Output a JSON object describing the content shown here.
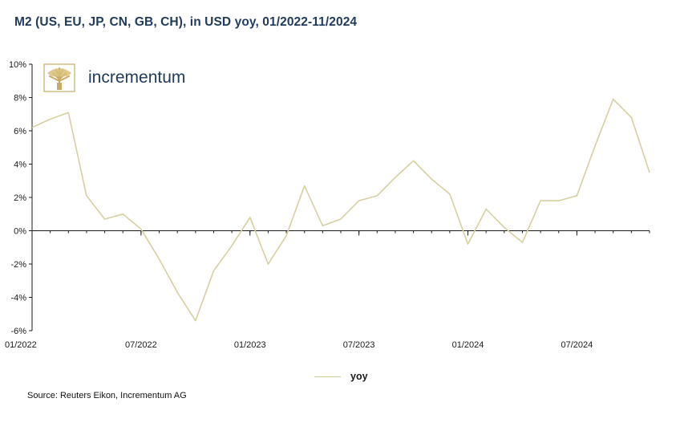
{
  "title": "M2 (US, EU, JP, CN, GB, CH), in USD yoy, 01/2022-11/2024",
  "logo": {
    "text": "incrementum",
    "icon": "tree-icon",
    "color": "#c8ab64"
  },
  "source": "Source: Reuters Eikon, Incrementum AG",
  "chart_data": {
    "type": "line",
    "title": "M2 (US, EU, JP, CN, GB, CH), in USD yoy, 01/2022-11/2024",
    "xlabel": "",
    "ylabel": "",
    "ylim": [
      -6,
      10
    ],
    "y_ticks": [
      "10%",
      "8%",
      "6%",
      "4%",
      "2%",
      "0%",
      "-2%",
      "-4%",
      "-6%"
    ],
    "y_tick_values": [
      10,
      8,
      6,
      4,
      2,
      0,
      -2,
      -4,
      -6
    ],
    "x_tick_labels": [
      "01/2022",
      "07/2022",
      "01/2023",
      "07/2023",
      "01/2024",
      "07/2024"
    ],
    "x_tick_indices": [
      0,
      6,
      12,
      18,
      24,
      30
    ],
    "grid": false,
    "legend": "bottom-center",
    "x": [
      "01/2022",
      "02/2022",
      "03/2022",
      "04/2022",
      "05/2022",
      "06/2022",
      "07/2022",
      "08/2022",
      "09/2022",
      "10/2022",
      "11/2022",
      "12/2022",
      "01/2023",
      "02/2023",
      "03/2023",
      "04/2023",
      "05/2023",
      "06/2023",
      "07/2023",
      "08/2023",
      "09/2023",
      "10/2023",
      "11/2023",
      "12/2023",
      "01/2024",
      "02/2024",
      "03/2024",
      "04/2024",
      "05/2024",
      "06/2024",
      "07/2024",
      "08/2024",
      "09/2024",
      "10/2024",
      "11/2024"
    ],
    "series": [
      {
        "name": "yoy",
        "color": "#d6cf9f",
        "values": [
          6.2,
          6.7,
          7.1,
          2.1,
          0.7,
          1.0,
          0.1,
          -1.7,
          -3.7,
          -5.4,
          -2.4,
          -0.9,
          0.8,
          -2.0,
          -0.3,
          2.7,
          0.3,
          0.7,
          1.8,
          2.1,
          3.2,
          4.2,
          3.1,
          2.2,
          -0.8,
          1.3,
          0.2,
          -0.7,
          1.8,
          1.8,
          2.1,
          5.1,
          7.9,
          6.8,
          3.5
        ]
      }
    ]
  }
}
